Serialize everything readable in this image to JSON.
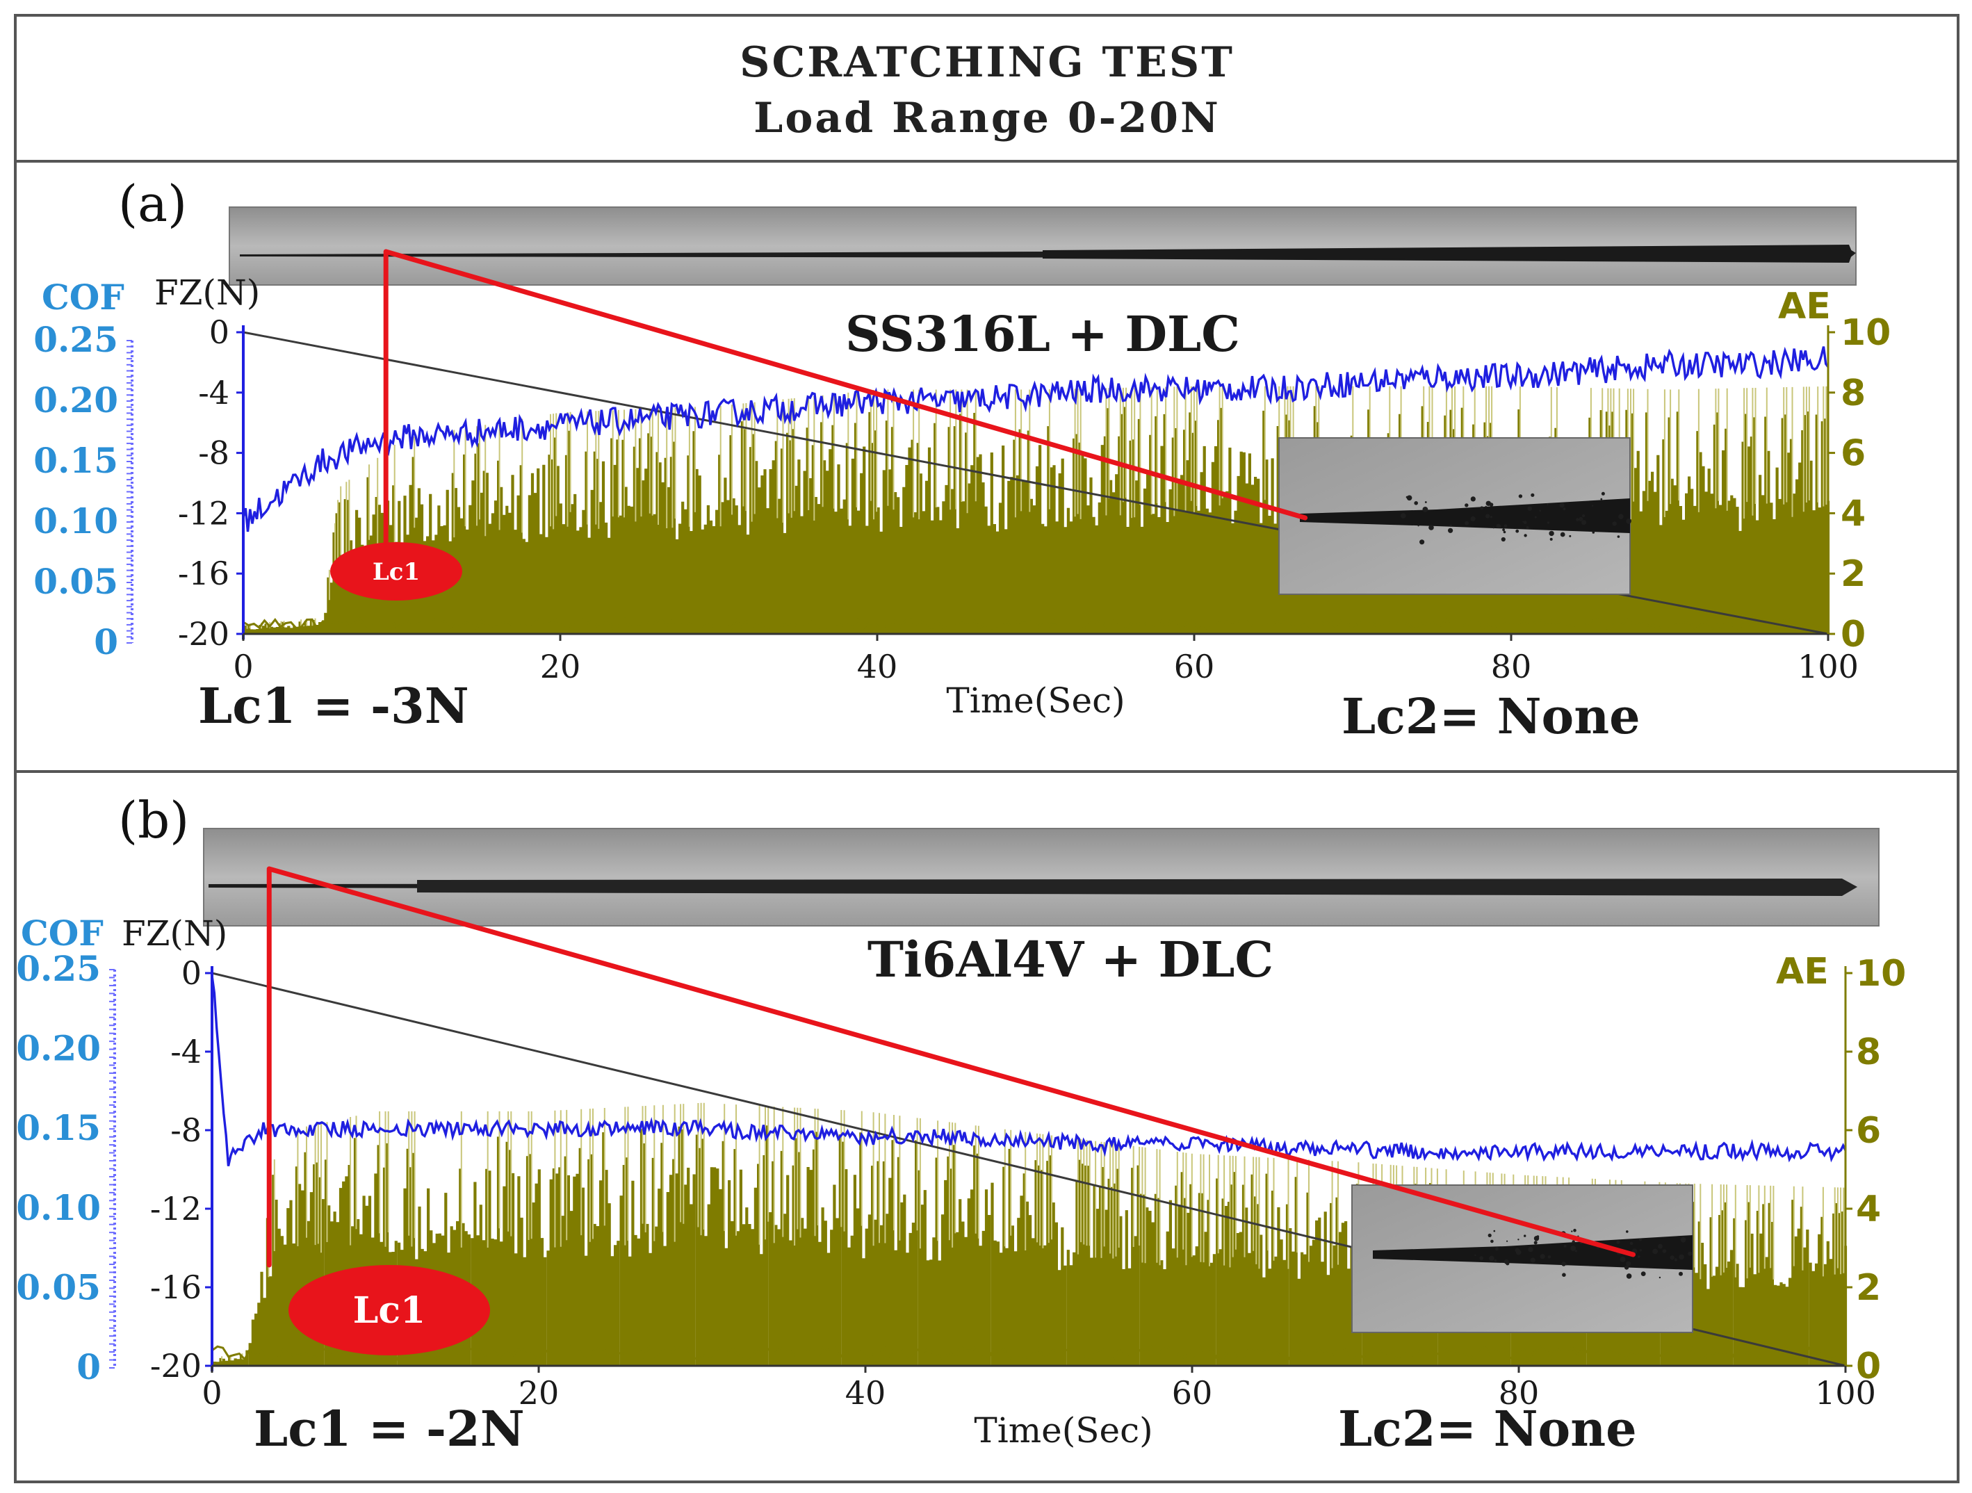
{
  "figure": {
    "title_line1": "SCRATCHING  TEST",
    "title_line2": "Load Range 0-20N"
  },
  "colors": {
    "cof": "#1f1fe0",
    "cof_axis": "#2a8fd6",
    "ae": "#7f7c00",
    "ae_light": "#c9c67a",
    "fz": "#3a3a3a",
    "marker": "#e8141b"
  },
  "chart_data": [
    {
      "type": "line",
      "panel_label": "(a)",
      "sample": "SS316L + DLC",
      "xlabel": "Time(Sec)",
      "xlim": [
        0,
        100
      ],
      "x_ticks": [
        "0",
        "20",
        "40",
        "60",
        "80",
        "100"
      ],
      "cof_label": "COF",
      "cof_ticks": [
        "0.25",
        "0.20",
        "0.15",
        "0.10",
        "0.05",
        "0"
      ],
      "cof_lim": [
        0,
        0.25
      ],
      "fz_label": "FZ(N)",
      "fz_ticks": [
        "0",
        "-4",
        "-8",
        "-12",
        "-16",
        "-20"
      ],
      "fz_lim": [
        -20,
        0
      ],
      "ae_label": "AE",
      "ae_ticks": [
        "10",
        "8",
        "6",
        "4",
        "2",
        "0"
      ],
      "ae_lim": [
        0,
        10
      ],
      "marker_label": "Lc1",
      "lc1": "Lc1 = -3N",
      "lc2": "Lc2= None",
      "series": [
        {
          "name": "FZ(N)",
          "x": [
            0,
            100
          ],
          "values": [
            0,
            -20
          ]
        },
        {
          "name": "COF",
          "x": [
            0,
            2,
            5,
            8,
            10,
            15,
            20,
            25,
            30,
            35,
            40,
            45,
            50,
            55,
            60,
            65,
            70,
            75,
            80,
            85,
            90,
            95,
            100
          ],
          "values": [
            0.1,
            0.12,
            0.15,
            0.165,
            0.17,
            0.175,
            0.18,
            0.185,
            0.19,
            0.195,
            0.2,
            0.2,
            0.205,
            0.21,
            0.21,
            0.21,
            0.215,
            0.22,
            0.22,
            0.225,
            0.23,
            0.23,
            0.235
          ]
        },
        {
          "name": "AE",
          "x": [
            0,
            5,
            6,
            10,
            20,
            30,
            40,
            50,
            60,
            70,
            80,
            90,
            100
          ],
          "values": [
            0.3,
            0.5,
            4.5,
            6.0,
            6.8,
            7.0,
            7.5,
            7.5,
            7.6,
            7.6,
            7.6,
            7.5,
            7.6
          ]
        }
      ],
      "lc1_time": 9,
      "inset_time": 67
    },
    {
      "type": "line",
      "panel_label": "(b)",
      "sample": "Ti6Al4V + DLC",
      "xlabel": "Time(Sec)",
      "xlim": [
        0,
        100
      ],
      "x_ticks": [
        "0",
        "20",
        "40",
        "60",
        "80",
        "100"
      ],
      "cof_label": "COF",
      "cof_ticks": [
        "0.25",
        "0.20",
        "0.15",
        "0.10",
        "0.05",
        "0"
      ],
      "cof_lim": [
        0,
        0.25
      ],
      "fz_label": "FZ(N)",
      "fz_ticks": [
        "0",
        "-4",
        "-8",
        "-12",
        "-16",
        "-20"
      ],
      "fz_lim": [
        -20,
        0
      ],
      "ae_label": "AE",
      "ae_ticks": [
        "10",
        "8",
        "6",
        "4",
        "2",
        "0"
      ],
      "ae_lim": [
        0,
        10
      ],
      "marker_label": "Lc1",
      "lc1": "Lc1 = -2N",
      "lc2": "Lc2= None",
      "series": [
        {
          "name": "FZ(N)",
          "x": [
            0,
            100
          ],
          "values": [
            0,
            -20
          ]
        },
        {
          "name": "COF",
          "x": [
            0,
            1,
            3,
            5,
            10,
            15,
            20,
            25,
            30,
            35,
            40,
            45,
            50,
            55,
            60,
            65,
            70,
            75,
            80,
            85,
            90,
            95,
            100
          ],
          "values": [
            0.25,
            0.13,
            0.15,
            0.15,
            0.15,
            0.15,
            0.15,
            0.15,
            0.15,
            0.148,
            0.145,
            0.145,
            0.142,
            0.14,
            0.14,
            0.138,
            0.137,
            0.136,
            0.136,
            0.136,
            0.136,
            0.136,
            0.136
          ]
        },
        {
          "name": "AE",
          "x": [
            0,
            2,
            4,
            10,
            20,
            30,
            40,
            50,
            60,
            70,
            80,
            90,
            100
          ],
          "values": [
            0.2,
            0.3,
            5.5,
            6.0,
            6.0,
            6.2,
            6.0,
            5.5,
            5.0,
            4.8,
            4.5,
            4.3,
            4.2
          ]
        }
      ],
      "lc1_time": 3.5,
      "inset_time": 87
    }
  ]
}
